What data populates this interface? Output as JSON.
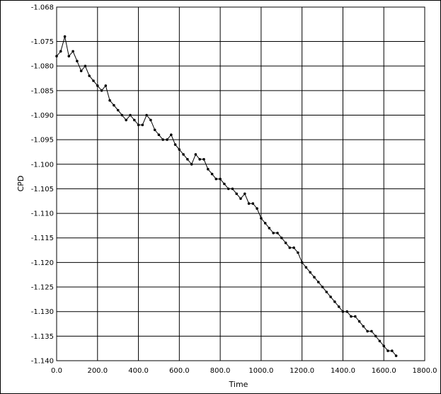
{
  "chart_data": {
    "type": "line",
    "xlabel": "Time",
    "ylabel": "CPD",
    "xlim": [
      0,
      1800
    ],
    "ylim": [
      -1.14,
      -1.068
    ],
    "grid": true,
    "x_ticks": [
      "0.0",
      "200.0",
      "400.0",
      "600.0",
      "800.0",
      "1000.0",
      "1200.0",
      "1400.0",
      "1600.0",
      "1800.0"
    ],
    "y_ticks": [
      "-1.068",
      "-1.075",
      "-1.080",
      "-1.085",
      "-1.090",
      "-1.095",
      "-1.100",
      "-1.105",
      "-1.110",
      "-1.115",
      "-1.120",
      "-1.125",
      "-1.130",
      "-1.135",
      "-1.140"
    ],
    "series": [
      {
        "marker": "dot",
        "color": "#000000",
        "x": [
          0,
          20,
          40,
          60,
          80,
          100,
          120,
          140,
          160,
          180,
          200,
          220,
          240,
          260,
          280,
          300,
          320,
          340,
          360,
          380,
          400,
          420,
          440,
          460,
          480,
          500,
          520,
          540,
          560,
          580,
          600,
          620,
          640,
          660,
          680,
          700,
          720,
          740,
          760,
          780,
          800,
          820,
          840,
          860,
          880,
          900,
          920,
          940,
          960,
          980,
          1000,
          1020,
          1040,
          1060,
          1080,
          1100,
          1120,
          1140,
          1160,
          1180,
          1200,
          1220,
          1240,
          1260,
          1280,
          1300,
          1320,
          1340,
          1360,
          1380,
          1400,
          1420,
          1440,
          1460,
          1480,
          1500,
          1520,
          1540,
          1560,
          1580,
          1600,
          1620,
          1640,
          1660
        ],
        "y": [
          -1.078,
          -1.077,
          -1.074,
          -1.078,
          -1.077,
          -1.079,
          -1.081,
          -1.08,
          -1.082,
          -1.083,
          -1.084,
          -1.085,
          -1.084,
          -1.087,
          -1.088,
          -1.089,
          -1.09,
          -1.091,
          -1.09,
          -1.091,
          -1.092,
          -1.092,
          -1.09,
          -1.091,
          -1.093,
          -1.094,
          -1.095,
          -1.095,
          -1.094,
          -1.096,
          -1.097,
          -1.098,
          -1.099,
          -1.1,
          -1.098,
          -1.099,
          -1.099,
          -1.101,
          -1.102,
          -1.103,
          -1.103,
          -1.104,
          -1.105,
          -1.105,
          -1.106,
          -1.107,
          -1.106,
          -1.108,
          -1.108,
          -1.109,
          -1.111,
          -1.112,
          -1.113,
          -1.114,
          -1.114,
          -1.115,
          -1.116,
          -1.117,
          -1.117,
          -1.118,
          -1.12,
          -1.121,
          -1.122,
          -1.123,
          -1.124,
          -1.125,
          -1.126,
          -1.127,
          -1.128,
          -1.129,
          -1.13,
          -1.13,
          -1.131,
          -1.131,
          -1.132,
          -1.133,
          -1.134,
          -1.134,
          -1.135,
          -1.136,
          -1.137,
          -1.138,
          -1.138,
          -1.139
        ]
      }
    ]
  }
}
